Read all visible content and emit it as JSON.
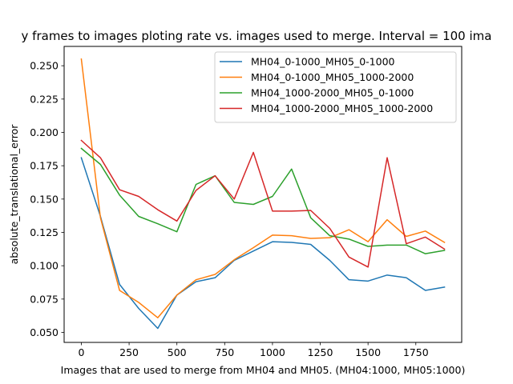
{
  "chart_data": {
    "type": "line",
    "title": "y frames to images ploting rate vs. images used to merge. Interval = 100 ima",
    "xlabel": "Images that are used to merge from MH04 and MH05. (MH04:1000, MH05:1000)",
    "ylabel": "absolute_translational_error",
    "xlim": [
      -90,
      1990
    ],
    "ylim": [
      0.0425,
      0.2645
    ],
    "x_ticks": [
      0,
      250,
      500,
      750,
      1000,
      1250,
      1500,
      1750
    ],
    "x_tick_labels": [
      "0",
      "250",
      "500",
      "750",
      "1000",
      "1250",
      "1500",
      "1750"
    ],
    "y_ticks": [
      0.05,
      0.075,
      0.1,
      0.125,
      0.15,
      0.175,
      0.2,
      0.225,
      0.25
    ],
    "y_tick_labels": [
      "0.050",
      "0.075",
      "0.100",
      "0.125",
      "0.150",
      "0.175",
      "0.200",
      "0.225",
      "0.250"
    ],
    "grid": false,
    "legend_position": "top-right",
    "x": [
      0,
      100,
      200,
      300,
      400,
      500,
      600,
      700,
      800,
      900,
      1000,
      1100,
      1200,
      1300,
      1400,
      1500,
      1600,
      1700,
      1800,
      1900
    ],
    "series": [
      {
        "name": "MH04_0-1000_MH05_0-1000",
        "color": "#1f77b4",
        "values": [
          0.181,
          0.137,
          0.086,
          0.068,
          0.053,
          0.078,
          0.088,
          0.091,
          0.104,
          0.111,
          0.118,
          0.1175,
          0.116,
          0.104,
          0.0895,
          0.0885,
          0.093,
          0.091,
          0.0815,
          0.084
        ]
      },
      {
        "name": "MH04_0-1000_MH05_1000-2000",
        "color": "#ff7f0e",
        "values": [
          0.255,
          0.136,
          0.0815,
          0.0725,
          0.061,
          0.078,
          0.0895,
          0.0935,
          0.1045,
          0.1135,
          0.123,
          0.1225,
          0.1205,
          0.121,
          0.127,
          0.118,
          0.1345,
          0.122,
          0.126,
          0.1175
        ]
      },
      {
        "name": "MH04_1000-2000_MH05_0-1000",
        "color": "#2ca02c",
        "values": [
          0.188,
          0.176,
          0.153,
          0.137,
          0.1315,
          0.1255,
          0.161,
          0.1675,
          0.1475,
          0.146,
          0.152,
          0.1725,
          0.136,
          0.1225,
          0.12,
          0.1145,
          0.1155,
          0.1155,
          0.109,
          0.1115
        ]
      },
      {
        "name": "MH04_1000-2000_MH05_1000-2000",
        "color": "#d62728",
        "values": [
          0.194,
          0.181,
          0.157,
          0.152,
          0.142,
          0.1335,
          0.1565,
          0.1675,
          0.15,
          0.185,
          0.141,
          0.141,
          0.1415,
          0.128,
          0.1065,
          0.099,
          0.181,
          0.1165,
          0.1215,
          0.1125
        ]
      }
    ]
  }
}
